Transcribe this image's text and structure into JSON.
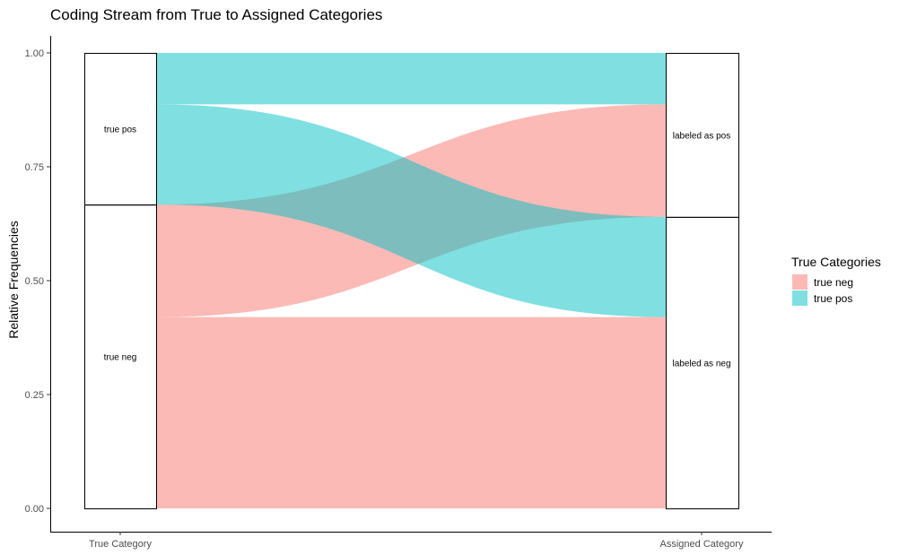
{
  "chart_data": {
    "type": "alluvial",
    "title": "Coding Stream from True to Assigned Categories",
    "xlabel": "",
    "ylabel": "Relative Frequencies",
    "ylim": [
      0,
      1
    ],
    "yticks": [
      "0.00",
      "0.25",
      "0.50",
      "0.75",
      "1.00"
    ],
    "axes": [
      "True Category",
      "Assigned Category"
    ],
    "strata": {
      "True Category": [
        {
          "label": "true neg",
          "from": 0.0,
          "to": 0.667
        },
        {
          "label": "true pos",
          "from": 0.667,
          "to": 1.0
        }
      ],
      "Assigned Category": [
        {
          "label": "labeled as neg",
          "from": 0.0,
          "to": 0.64
        },
        {
          "label": "labeled as pos",
          "from": 0.64,
          "to": 1.0
        }
      ]
    },
    "flows": [
      {
        "true": "true neg",
        "assigned": "labeled as neg",
        "value": 0.42
      },
      {
        "true": "true neg",
        "assigned": "labeled as pos",
        "value": 0.247
      },
      {
        "true": "true pos",
        "assigned": "labeled as neg",
        "value": 0.22
      },
      {
        "true": "true pos",
        "assigned": "labeled as pos",
        "value": 0.113
      }
    ],
    "legend": {
      "title": "True Categories",
      "position": "right",
      "entries": [
        {
          "label": "true neg",
          "color": "#F8766D"
        },
        {
          "label": "true pos",
          "color": "#00BFC4"
        }
      ]
    },
    "grid": false
  }
}
